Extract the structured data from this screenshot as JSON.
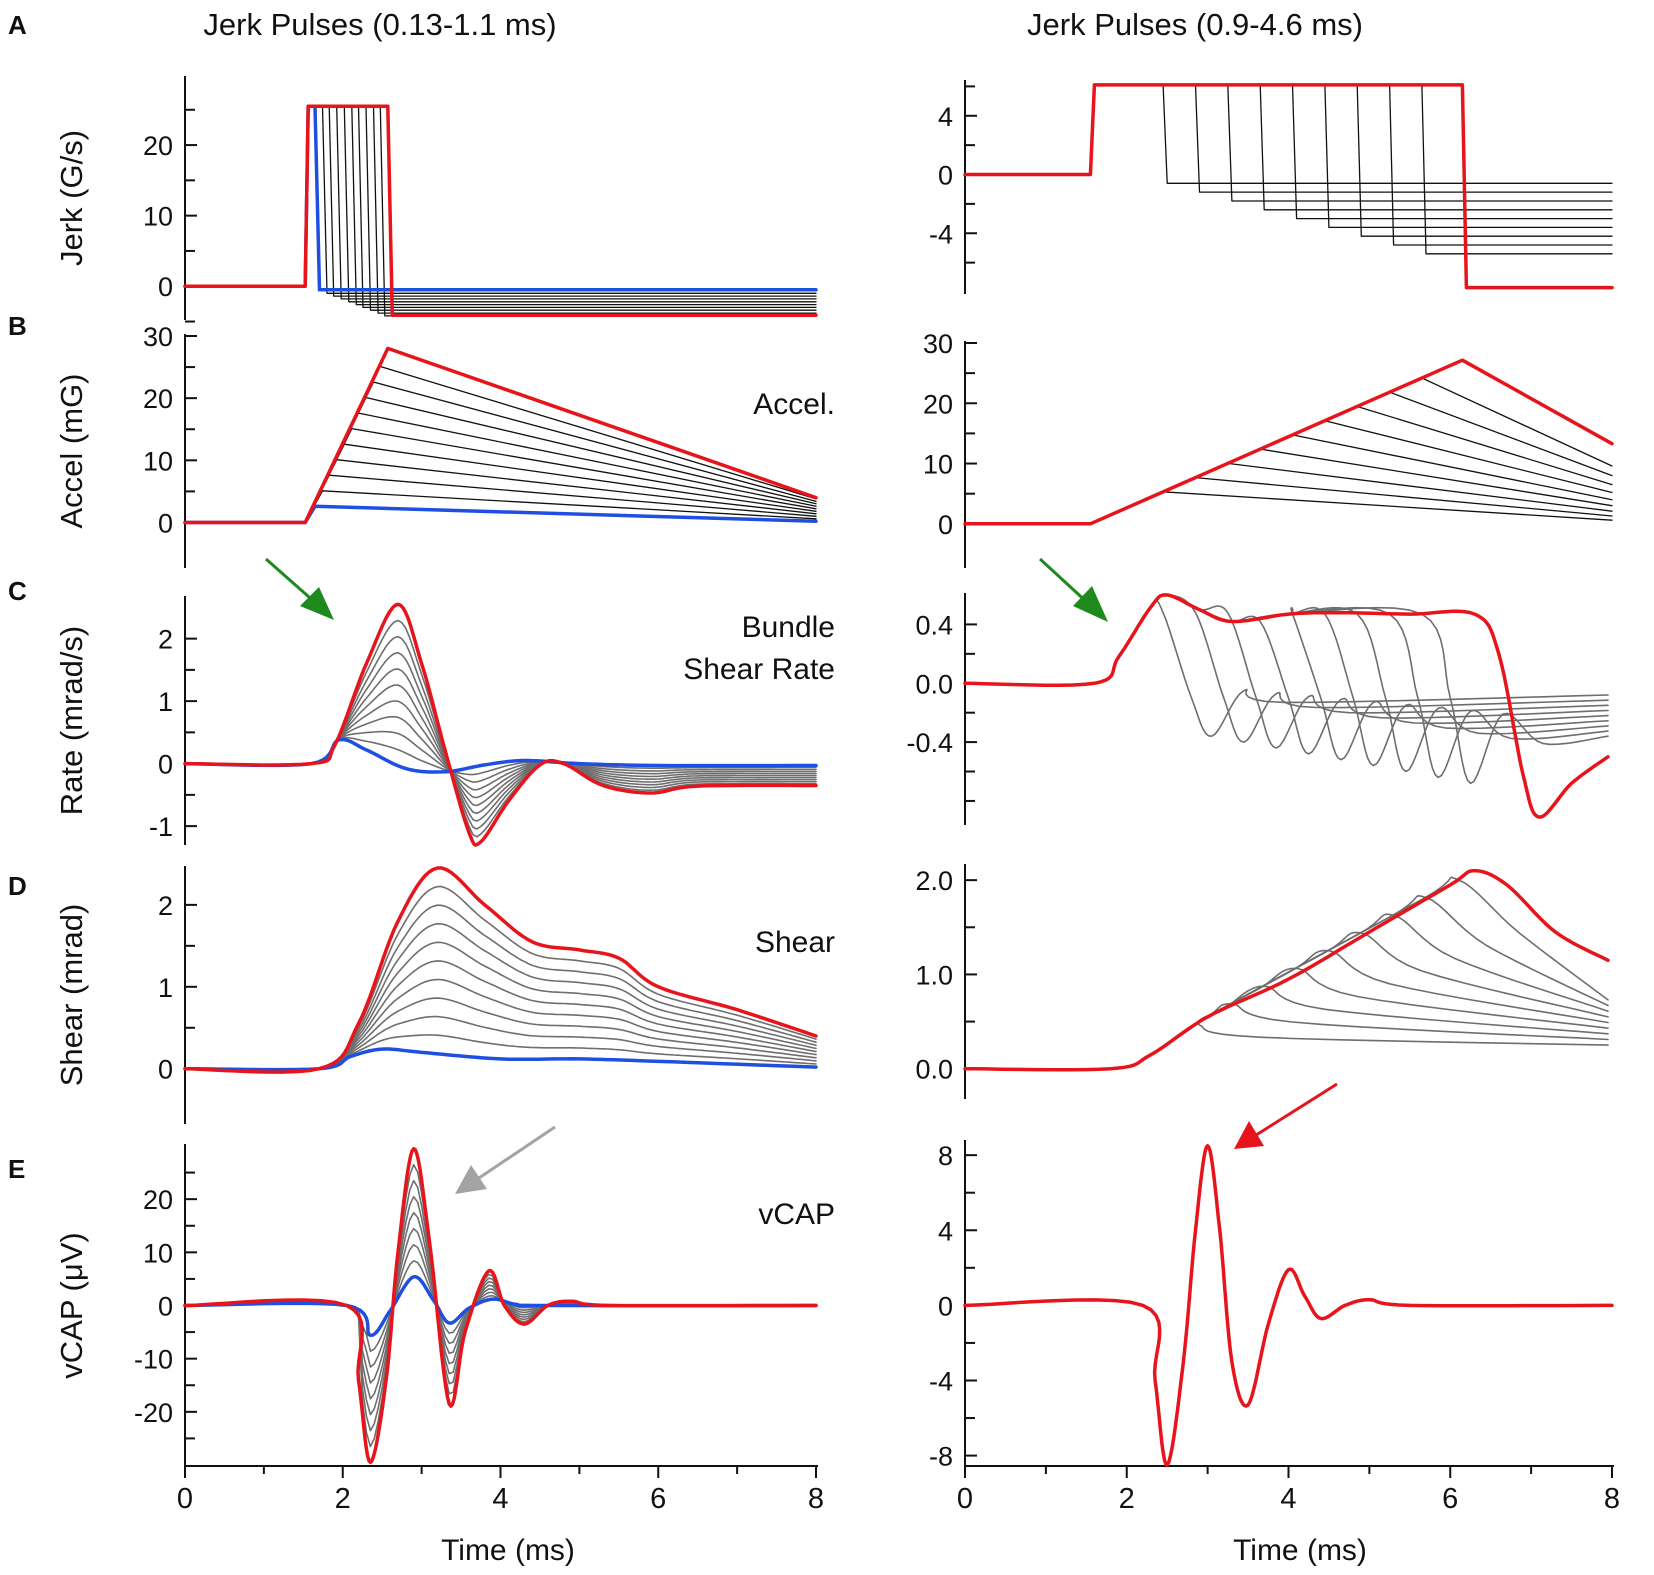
{
  "colors": {
    "red": "#e8141b",
    "blue": "#1f4fe0",
    "gray": "#6e6e6e",
    "black": "#111111",
    "green": "#1e8a1e",
    "arrow_gray": "#a3a3a3"
  },
  "figure": {
    "left_title": "Jerk Pulses (0.13-1.1 ms)",
    "right_title": "Jerk Pulses (0.9-4.6 ms)",
    "panel_letters": [
      "A",
      "B",
      "C",
      "D",
      "E"
    ],
    "x_label": "Time (ms)",
    "annotations": {
      "accel": "Accel.",
      "bundle_1": "Bundle",
      "bundle_2": "Shear Rate",
      "shear": "Shear",
      "vcap": "vCAP"
    }
  },
  "chart_data": [
    {
      "id": "A-left",
      "type": "line",
      "title": "Jerk Pulses (0.13-1.1 ms)",
      "ylabel": "Jerk (G/s)",
      "xlim": [
        0,
        8.4
      ],
      "ylim": [
        -4.5,
        29.5
      ],
      "x_ticks": [
        0,
        2,
        4,
        6,
        8
      ],
      "y_ticks": [
        0,
        10,
        20
      ],
      "y_minor": [
        -5,
        5,
        15,
        25
      ],
      "onset_ms": 1.6,
      "amplitude_gs": 25.5,
      "pulse_widths_ms": [
        0.13,
        0.23,
        0.32,
        0.42,
        0.52,
        0.62,
        0.71,
        0.81,
        0.91,
        1.0,
        1.1
      ],
      "post_pulse_levels_gs": [
        -0.5,
        -1.0,
        -1.4,
        -1.8,
        -2.2,
        -2.6,
        -3.0,
        -3.4,
        -3.8,
        -4.2,
        -4.1
      ]
    },
    {
      "id": "A-right",
      "type": "line",
      "title": "Jerk Pulses (0.9-4.6 ms)",
      "ylabel": "",
      "xlim": [
        0,
        8
      ],
      "ylim": [
        -8,
        6.3
      ],
      "x_ticks": [
        0,
        2,
        4,
        6,
        8
      ],
      "y_ticks": [
        4,
        0,
        -4
      ],
      "y_tick_labels": [
        "4",
        "0",
        "-4"
      ],
      "y_minor": [
        -6,
        -2,
        2,
        6
      ],
      "onset_ms": 1.55,
      "amplitude_gs": 6.1,
      "pulse_widths_ms": [
        0.9,
        1.3,
        1.7,
        2.1,
        2.5,
        2.9,
        3.3,
        3.7,
        4.1,
        4.6
      ],
      "post_pulse_levels_gs": [
        -0.6,
        -1.2,
        -1.8,
        -2.4,
        -3.0,
        -3.6,
        -4.2,
        -4.8,
        -5.4,
        -7.7
      ]
    },
    {
      "id": "B-left",
      "type": "line",
      "ylabel": "Accel (mG)",
      "annotation": "Accel.",
      "xlim": [
        0,
        8.4
      ],
      "ylim": [
        -7,
        30
      ],
      "x_ticks": [
        0,
        2,
        4,
        6,
        8
      ],
      "y_ticks": [
        0,
        10,
        20,
        30
      ],
      "y_minor": [
        5,
        15,
        25
      ],
      "onset_ms": 1.6,
      "peak_mG": [
        2.6,
        5.1,
        7.6,
        10.1,
        12.6,
        15.1,
        17.6,
        20.1,
        22.6,
        25.1,
        28.0
      ],
      "end_mG_at_8.4ms": [
        0.2,
        0.6,
        1.0,
        1.4,
        1.8,
        2.2,
        2.6,
        3.0,
        3.4,
        3.8,
        4.0
      ]
    },
    {
      "id": "B-right",
      "type": "line",
      "ylabel": "",
      "xlim": [
        0,
        8
      ],
      "ylim": [
        -7,
        30
      ],
      "x_ticks": [
        0,
        2,
        4,
        6,
        8
      ],
      "y_ticks": [
        0,
        10,
        20,
        30
      ],
      "y_minor": [
        5,
        15,
        25
      ],
      "onset_ms": 1.55,
      "slope_mG_per_ms": 5.9,
      "end_mG_at_8ms": [
        0.6,
        1.3,
        2.1,
        3.0,
        4.0,
        5.2,
        6.5,
        8.0,
        9.6,
        13.3
      ]
    },
    {
      "id": "C-left",
      "type": "line",
      "ylabel": "Rate  (mrad/s)",
      "annotation": [
        "Bundle",
        "Shear Rate"
      ],
      "xlim": [
        0,
        8
      ],
      "ylim": [
        -1.27,
        2.65
      ],
      "x_ticks": [
        0,
        2,
        4,
        6,
        8
      ],
      "y_ticks": [
        -1,
        0,
        1,
        2
      ],
      "y_minor": [
        -0.5,
        0.5,
        1.5
      ],
      "series": [
        {
          "name": "shortest pulse",
          "color": "blue",
          "points": [
            [
              0,
              0
            ],
            [
              1.6,
              0
            ],
            [
              1.95,
              0.38
            ],
            [
              2.3,
              0.22
            ],
            [
              2.8,
              -0.08
            ],
            [
              3.3,
              -0.13
            ],
            [
              3.8,
              -0.02
            ],
            [
              4.3,
              0.05
            ],
            [
              5.0,
              0.0
            ],
            [
              6.0,
              -0.03
            ],
            [
              8.0,
              -0.03
            ]
          ]
        },
        {
          "name": "longest pulse",
          "color": "red",
          "points": [
            [
              0,
              0
            ],
            [
              1.6,
              0
            ],
            [
              1.9,
              0.3
            ],
            [
              2.3,
              1.6
            ],
            [
              2.7,
              2.55
            ],
            [
              3.0,
              1.6
            ],
            [
              3.3,
              0.2
            ],
            [
              3.6,
              -1.1
            ],
            [
              3.75,
              -1.25
            ],
            [
              4.1,
              -0.6
            ],
            [
              4.5,
              -0.02
            ],
            [
              4.8,
              0.0
            ],
            [
              5.3,
              -0.35
            ],
            [
              5.9,
              -0.47
            ],
            [
              6.5,
              -0.36
            ],
            [
              8.0,
              -0.35
            ]
          ]
        }
      ]
    },
    {
      "id": "C-right",
      "type": "line",
      "ylabel": "",
      "xlim": [
        0,
        8
      ],
      "ylim": [
        -0.95,
        0.6
      ],
      "x_ticks": [
        0,
        2,
        4,
        6,
        8
      ],
      "y_ticks": [
        0.4,
        0.0,
        -0.4
      ],
      "y_tick_labels": [
        "0.4",
        "0.0",
        "-0.4"
      ],
      "y_minor": [
        -0.8,
        -0.6,
        -0.2,
        0.2
      ],
      "series": [
        {
          "name": "longest pulse",
          "color": "red",
          "points": [
            [
              0,
              0
            ],
            [
              1.6,
              0
            ],
            [
              1.9,
              0.18
            ],
            [
              2.3,
              0.52
            ],
            [
              2.5,
              0.6
            ],
            [
              2.9,
              0.5
            ],
            [
              3.3,
              0.42
            ],
            [
              4.0,
              0.47
            ],
            [
              4.6,
              0.48
            ],
            [
              5.5,
              0.47
            ],
            [
              6.3,
              0.47
            ],
            [
              6.6,
              0.2
            ],
            [
              6.9,
              -0.62
            ],
            [
              7.1,
              -0.91
            ],
            [
              7.5,
              -0.68
            ],
            [
              7.95,
              -0.5
            ]
          ]
        }
      ]
    },
    {
      "id": "D-left",
      "type": "line",
      "ylabel": "Shear  (mrad)",
      "annotation": "Shear",
      "xlim": [
        0,
        8
      ],
      "ylim": [
        -0.65,
        2.45
      ],
      "x_ticks": [
        0,
        2,
        4,
        6,
        8
      ],
      "y_ticks": [
        0,
        1,
        2
      ],
      "y_minor": [
        0.5,
        1.5
      ],
      "series": [
        {
          "name": "shortest pulse",
          "color": "blue",
          "points": [
            [
              0,
              0
            ],
            [
              1.7,
              0
            ],
            [
              2.1,
              0.15
            ],
            [
              2.5,
              0.24
            ],
            [
              3.0,
              0.2
            ],
            [
              4.0,
              0.12
            ],
            [
              5.0,
              0.12
            ],
            [
              6.0,
              0.09
            ],
            [
              8.0,
              0.02
            ]
          ]
        },
        {
          "name": "longest pulse",
          "color": "red",
          "points": [
            [
              0,
              0
            ],
            [
              1.7,
              0
            ],
            [
              2.2,
              0.55
            ],
            [
              2.7,
              1.8
            ],
            [
              3.2,
              2.45
            ],
            [
              3.8,
              2.0
            ],
            [
              4.4,
              1.55
            ],
            [
              5.0,
              1.45
            ],
            [
              5.5,
              1.35
            ],
            [
              6.0,
              1.0
            ],
            [
              7.0,
              0.72
            ],
            [
              8.0,
              0.4
            ]
          ]
        }
      ]
    },
    {
      "id": "D-right",
      "type": "line",
      "ylabel": "",
      "xlim": [
        0,
        8
      ],
      "ylim": [
        -0.3,
        2.15
      ],
      "x_ticks": [
        0,
        2,
        4,
        6,
        8
      ],
      "y_ticks": [
        0.0,
        1.0,
        2.0
      ],
      "y_tick_labels": [
        "0.0",
        "1.0",
        "2.0"
      ],
      "y_minor": [
        0.5,
        1.5
      ],
      "series": [
        {
          "name": "longest pulse",
          "color": "red",
          "points": [
            [
              0,
              0
            ],
            [
              1.8,
              0
            ],
            [
              2.3,
              0.15
            ],
            [
              3.0,
              0.55
            ],
            [
              4.0,
              0.95
            ],
            [
              5.0,
              1.45
            ],
            [
              6.0,
              1.95
            ],
            [
              6.3,
              2.1
            ],
            [
              6.7,
              1.95
            ],
            [
              7.3,
              1.45
            ],
            [
              7.95,
              1.15
            ]
          ]
        }
      ]
    },
    {
      "id": "E-left",
      "type": "line",
      "ylabel": "vCAP (μV)",
      "annotation": "vCAP",
      "xlim": [
        0,
        8
      ],
      "ylim": [
        -30,
        30
      ],
      "x_ticks": [
        0,
        2,
        4,
        6,
        8
      ],
      "y_ticks": [
        -20,
        -10,
        0,
        10,
        20
      ],
      "y_tick_labels": [
        "-20",
        "-10",
        "0",
        "10",
        "20"
      ],
      "y_minor": [
        -25,
        -15,
        -5,
        5,
        15,
        25
      ],
      "series": [
        {
          "name": "largest response",
          "color": "red",
          "points": [
            [
              0,
              0
            ],
            [
              2.05,
              0
            ],
            [
              2.2,
              -14
            ],
            [
              2.35,
              -29.5
            ],
            [
              2.55,
              -14
            ],
            [
              2.7,
              10
            ],
            [
              2.9,
              29.5
            ],
            [
              3.1,
              12
            ],
            [
              3.35,
              -18.5
            ],
            [
              3.55,
              -5
            ],
            [
              3.85,
              6.5
            ],
            [
              4.05,
              0
            ],
            [
              4.3,
              -3.5
            ],
            [
              4.6,
              0
            ],
            [
              4.9,
              0.8
            ],
            [
              5.4,
              0
            ],
            [
              8.0,
              0
            ]
          ]
        },
        {
          "name": "smallest response",
          "color": "blue",
          "points": [
            [
              0,
              0
            ],
            [
              2.05,
              0
            ],
            [
              2.35,
              -5.6
            ],
            [
              2.6,
              -1
            ],
            [
              2.9,
              5.4
            ],
            [
              3.15,
              1
            ],
            [
              3.35,
              -3.3
            ],
            [
              3.6,
              -0.5
            ],
            [
              3.9,
              1.2
            ],
            [
              4.2,
              0.2
            ],
            [
              4.6,
              0
            ],
            [
              8.0,
              0
            ]
          ]
        }
      ]
    },
    {
      "id": "E-right",
      "type": "line",
      "ylabel": "",
      "xlim": [
        0,
        8
      ],
      "ylim": [
        -8.5,
        8.7
      ],
      "x_ticks": [
        0,
        2,
        4,
        6,
        8
      ],
      "y_ticks": [
        8,
        4,
        0,
        -4,
        -8
      ],
      "y_tick_labels": [
        "8",
        "4",
        "0",
        "-4",
        "-8"
      ],
      "y_minor": [
        -6,
        -2,
        2,
        6
      ],
      "series": [
        {
          "name": "response",
          "color": "red",
          "points": [
            [
              0,
              0
            ],
            [
              2.2,
              0
            ],
            [
              2.35,
              -4
            ],
            [
              2.5,
              -8.5
            ],
            [
              2.7,
              -3
            ],
            [
              2.85,
              4
            ],
            [
              3.0,
              8.5
            ],
            [
              3.15,
              4
            ],
            [
              3.3,
              -3
            ],
            [
              3.5,
              -5.3
            ],
            [
              3.75,
              -1
            ],
            [
              4.0,
              1.9
            ],
            [
              4.2,
              0.5
            ],
            [
              4.4,
              -0.7
            ],
            [
              4.7,
              0
            ],
            [
              5.0,
              0.3
            ],
            [
              5.5,
              0
            ],
            [
              8.0,
              0
            ]
          ]
        }
      ]
    }
  ]
}
